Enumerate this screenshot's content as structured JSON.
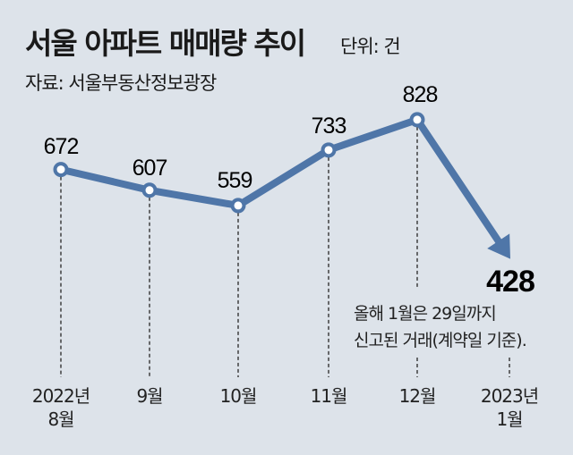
{
  "chart_data": {
    "type": "line",
    "title": "서울 아파트 매매량 추이",
    "unit": "단위: 건",
    "source": "자료: 서울부동산정보광장",
    "categories": [
      [
        "2022년",
        "8월"
      ],
      [
        "9월"
      ],
      [
        "10월"
      ],
      [
        "11월"
      ],
      [
        "12월"
      ],
      [
        "2023년",
        "1월"
      ]
    ],
    "values": [
      672,
      607,
      559,
      733,
      828,
      428
    ],
    "value_labels": [
      "672",
      "607",
      "559",
      "733",
      "828",
      "428"
    ],
    "annotation": [
      "올해 1월은 29일까지",
      "신고된 거래(계약일 기준)."
    ],
    "line_color": "#4f76a8",
    "background": "#dde3ea"
  }
}
